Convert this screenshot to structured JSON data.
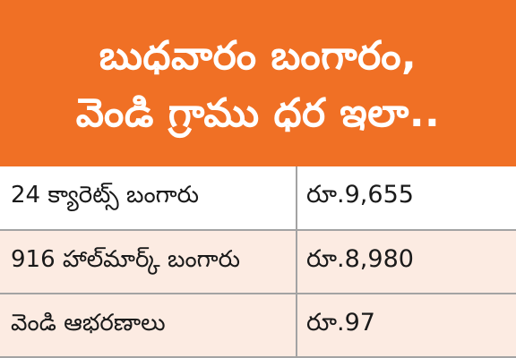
{
  "header": {
    "line1": "బుధవారం బంగారం,",
    "line2": "వెండి గ్రాము ధర ఇలా.."
  },
  "colors": {
    "header_bg": "#f07025",
    "row_alt_bg": "#fcebe2",
    "grid_line": "#a3a3a3"
  },
  "rows": [
    {
      "item": "24 క్యారెట్స్ బంగారు",
      "price": "రూ.9,655"
    },
    {
      "item": "916 హాల్‌మార్క్ బంగారు",
      "price": "రూ.8,980"
    },
    {
      "item": "వెండి ఆభరణాలు",
      "price": "రూ.97"
    }
  ]
}
